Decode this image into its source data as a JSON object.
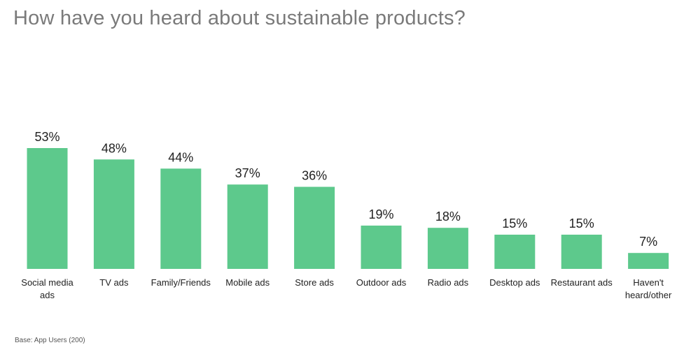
{
  "title": "How have you heard about sustainable products?",
  "footnote": "Base: App Users (200)",
  "colors": {
    "bar": "#5dc98c",
    "title": "#7a7a7a",
    "text": "#222222"
  },
  "chart_data": {
    "type": "bar",
    "title": "How have you heard about sustainable products?",
    "categories": [
      [
        "Social media",
        "ads"
      ],
      [
        "TV ads"
      ],
      [
        "Family/Friends"
      ],
      [
        "Mobile ads"
      ],
      [
        "Store ads"
      ],
      [
        "Outdoor ads"
      ],
      [
        "Radio ads"
      ],
      [
        "Desktop ads"
      ],
      [
        "Restaurant ads"
      ],
      [
        "Haven't",
        "heard/other"
      ]
    ],
    "values": [
      53,
      48,
      44,
      37,
      36,
      19,
      18,
      15,
      15,
      7
    ],
    "value_labels": [
      "53%",
      "48%",
      "44%",
      "37%",
      "36%",
      "19%",
      "18%",
      "15%",
      "15%",
      "7%"
    ],
    "xlabel": "",
    "ylabel": "",
    "ylim": [
      0,
      53
    ],
    "grid": false,
    "legend": "none"
  }
}
